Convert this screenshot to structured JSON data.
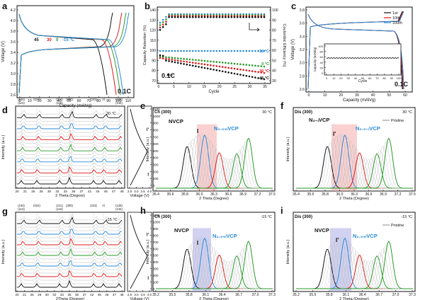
{
  "panels": {
    "a": {
      "letter": "a",
      "rate": "0.1C",
      "xlabel": "Capacity (mAh/g)",
      "ylabel": "Voltage (V)",
      "xticks": [
        "0",
        "10",
        "20",
        "30",
        "40",
        "50",
        "60",
        "70",
        "80",
        "90",
        "100",
        "110"
      ],
      "yticks": [
        "4.2",
        "4.0",
        "3.8",
        "3.6",
        "3.4",
        "3.2",
        "3.0",
        "2.8",
        "2.6"
      ],
      "temps": [
        {
          "label": "45",
          "color": "#111111"
        },
        {
          "label": "30",
          "color": "#e01818"
        },
        {
          "label": "0",
          "color": "#2a9a2a"
        },
        {
          "label": "-15 °C",
          "color": "#2a8ad8"
        }
      ]
    },
    "b": {
      "letter": "b",
      "rate": "0.1C",
      "xlabel": "Cycle",
      "ylabel_left": "Capacity Retention (%)",
      "ylabel_right": "Coulombic Efficiency (%)",
      "xticks": [
        "0",
        "5",
        "10",
        "15",
        "20",
        "25",
        "30",
        "35"
      ],
      "yticks_left": [
        "140",
        "130",
        "120",
        "110",
        "100",
        "90",
        "80",
        "70"
      ],
      "yticks_right": [
        "100",
        "90",
        "80",
        "70",
        "60",
        "50",
        "40",
        "30"
      ],
      "series_labels": [
        "-15 °C",
        "0 °C",
        "30 °C",
        "45 °C"
      ]
    },
    "c": {
      "letter": "c",
      "rate": "0.1C",
      "xlabel": "Capacity (mAh/g)",
      "ylabel": "Voltage (V)",
      "xticks": [
        "0",
        "10",
        "20",
        "30",
        "40",
        "50",
        "60"
      ],
      "yticks": [
        "3.8",
        "3.6",
        "3.4",
        "3.2",
        "3.0",
        "2.8",
        "2.6"
      ],
      "legend": [
        "1st",
        "10th",
        "100th"
      ],
      "inset_xlabel": "Cycle",
      "inset_ylabel": "Capacity (mAh/g)",
      "inset_xticks": [
        "0",
        "10",
        "20",
        "30",
        "40",
        "50",
        "60",
        "70",
        "80",
        "90",
        "100"
      ],
      "inset_yticks": [
        "100",
        "80",
        "60",
        "40",
        "20",
        "0"
      ]
    },
    "d": {
      "letter": "d",
      "temp": "30 °C",
      "xlabel": "2 Theta (Degree)",
      "ylabel": "Intensity (a.u.)",
      "vlabel": "Voltage (V)",
      "peaks": [
        "(104)\n(113)",
        "(024)",
        "(211)\n(116)",
        "(300)",
        "(223)",
        "Al",
        "(128)\n(134)"
      ],
      "xticks": [
        "20",
        "21",
        "25",
        "26",
        "30",
        "32",
        "33",
        "36",
        "37",
        "42",
        "45",
        "46",
        "47",
        "48"
      ],
      "time_ticks": [
        "1100",
        "1000",
        "900",
        "800",
        "700",
        "600",
        "500",
        "400",
        "300",
        "200",
        "100",
        "0"
      ],
      "v_ticks": [
        "2.5",
        "3.0",
        "3.5",
        "4.0"
      ],
      "markers": [
        "I'",
        "I"
      ]
    },
    "e": {
      "letter": "e",
      "tag": "Ch (300)",
      "temp": "30 °C",
      "xlabel": "2 Theta (Degree)",
      "ylabel": "Intensity (a.u.)",
      "xticks": [
        "35.4",
        "35.6",
        "35.8",
        "36.0",
        "36.3",
        "36.6",
        "36.9",
        "37.2",
        "37.5"
      ],
      "phases": [
        "NVCP",
        "I",
        "N₂.₅₊ᵢVCP"
      ]
    },
    "f": {
      "letter": "f",
      "tag": "Dis (300)",
      "temp": "30 °C",
      "legend": "Pristine",
      "xlabel": "2 Theta (Degree)",
      "ylabel": "Intensity (a.u.)",
      "xticks": [
        "35.4",
        "35.6",
        "35.8",
        "36.0",
        "36.3",
        "36.6",
        "36.9",
        "37.2",
        "37.5"
      ],
      "phases": [
        "N₃₋ᵢVCP",
        "I'",
        "N₂.₅₋ᵢVCP"
      ]
    },
    "g": {
      "letter": "g",
      "temp": "-15 °C",
      "xlabel": "2Theta (Degree)",
      "ylabel": "Intensity (a.u.)",
      "vlabel": "Voltage (V)",
      "peaks": [
        "(104)\n(113)",
        "(024)",
        "(211)\n(116)",
        "(300)",
        "(223)",
        "Al",
        "(128)\n(134)"
      ],
      "xticks": [
        "20",
        "21",
        "25",
        "26",
        "30",
        "32",
        "33",
        "35",
        "36",
        "37",
        "42",
        "45",
        "46",
        "47",
        "48"
      ],
      "time_ticks": [
        "1100",
        "1000",
        "900",
        "800",
        "700",
        "600",
        "500",
        "400",
        "300",
        "200",
        "100",
        "0"
      ],
      "v_ticks": [
        "2.5",
        "3.0",
        "3.5",
        "4.0"
      ],
      "markers": [
        "I'",
        "I"
      ]
    },
    "h": {
      "letter": "h",
      "tag": "Ch (300)",
      "temp": "-15 °C",
      "xlabel": "2 Theta (Degree)",
      "ylabel": "Intensity (a.u.)",
      "xticks": [
        "35.2",
        "35.5",
        "35.8",
        "36.1",
        "36.4",
        "36.7",
        "37.0",
        "37.3"
      ],
      "phases": [
        "NVCP",
        "I",
        "N₂.₅₊ᵢVCP"
      ]
    },
    "i": {
      "letter": "i",
      "tag": "Dis (300)",
      "temp": "-15 °C",
      "legend": "Pristine",
      "xlabel": "2 Theta (Degree)",
      "ylabel": "Intensity (a.u.)",
      "xticks": [
        "35.2",
        "35.5",
        "35.8",
        "36.1",
        "36.4",
        "36.7",
        "37.0",
        "37.3"
      ],
      "phases": [
        "NVCP",
        "I'",
        "N₂.₅₊ᵢVCP"
      ]
    }
  },
  "colors": {
    "black": "#111111",
    "red": "#e01818",
    "green": "#2a9a2a",
    "blue": "#2a8ad8",
    "pink": "#f29a9a",
    "lavender": "#9a9ae0",
    "grey": "#b8b8b8"
  }
}
